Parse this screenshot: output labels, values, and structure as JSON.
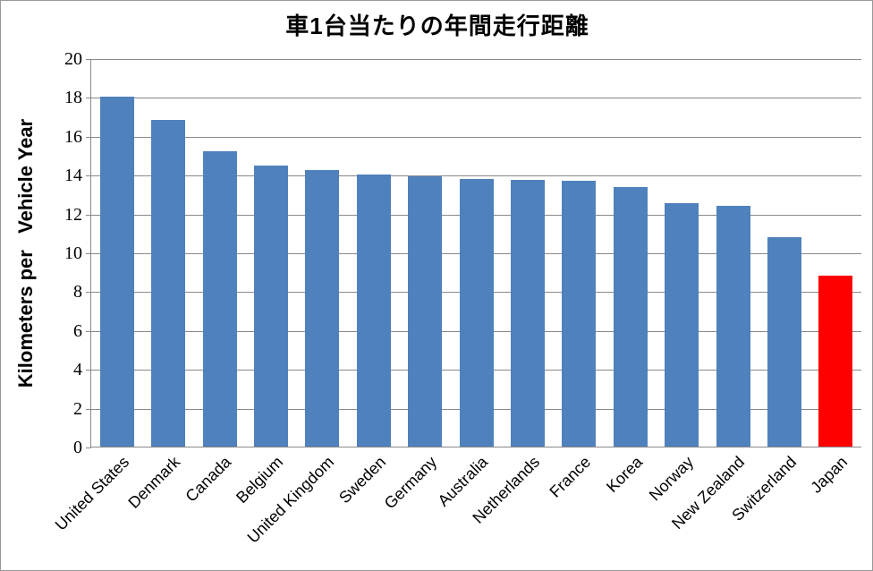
{
  "chart_data": {
    "type": "bar",
    "title": "車1台当たりの年間走行距離",
    "ylabel": "Kilometers per   Vehicle Year",
    "xlabel": "",
    "categories": [
      "United States",
      "Denmark",
      "Canada",
      "Belgium",
      "United Kingdom",
      "Sweden",
      "Germany",
      "Australia",
      "Netherlands",
      "France",
      "Korea",
      "Norway",
      "New Zealand",
      "Switzerland",
      "Japan"
    ],
    "values": [
      18.0,
      16.8,
      15.2,
      14.45,
      14.25,
      14.0,
      13.9,
      13.8,
      13.75,
      13.7,
      13.35,
      12.55,
      12.4,
      10.8,
      8.8
    ],
    "ylim": [
      0,
      20
    ],
    "yticks": [
      0,
      2,
      4,
      6,
      8,
      10,
      12,
      14,
      16,
      18,
      20
    ],
    "grid": true,
    "legend": false,
    "bar_color_default": "#4F81BD",
    "highlight": {
      "index": 14,
      "color": "#FF0000"
    },
    "gridline_color": "#898989",
    "axis_color": "#898989",
    "frame_border_color": "#999999"
  }
}
